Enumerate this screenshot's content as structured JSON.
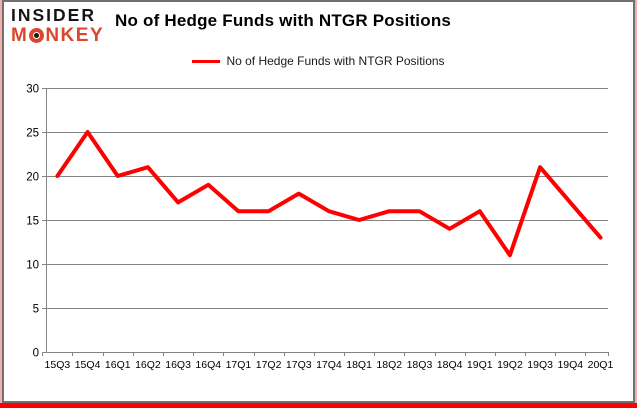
{
  "logo": {
    "line1": "INSIDER",
    "monkey_m": "M",
    "monkey_rest": "NKEY"
  },
  "header": {
    "title": "No of Hedge Funds with NTGR Positions"
  },
  "legend": {
    "label": "No of Hedge Funds with NTGR Positions"
  },
  "chart_data": {
    "type": "line",
    "title": "No of Hedge Funds with NTGR Positions",
    "categories": [
      "15Q3",
      "15Q4",
      "16Q1",
      "16Q2",
      "16Q3",
      "16Q4",
      "17Q1",
      "17Q2",
      "17Q3",
      "17Q4",
      "18Q1",
      "18Q2",
      "18Q3",
      "18Q4",
      "19Q1",
      "19Q2",
      "19Q3",
      "19Q4",
      "20Q1"
    ],
    "series": [
      {
        "name": "No of Hedge Funds with NTGR Positions",
        "color": "#FF0000",
        "values": [
          20,
          25,
          20,
          21,
          17,
          19,
          16,
          16,
          18,
          16,
          15,
          16,
          16,
          14,
          16,
          11,
          21,
          17,
          13
        ]
      }
    ],
    "ylim": [
      0,
      30
    ],
    "yticks": [
      0,
      5,
      10,
      15,
      20,
      25,
      30
    ],
    "grid": "horizontal",
    "legend_position": "top-center"
  },
  "colors": {
    "series_line": "#FF0000",
    "grid_line": "#848484",
    "axis_text": "#000000",
    "logo_red": "#D9482E",
    "logo_black": "#151515",
    "bottom_bar": "#FE0000",
    "edge_glow": "#F3AEA7",
    "frame_border": "#6F6F6F"
  }
}
